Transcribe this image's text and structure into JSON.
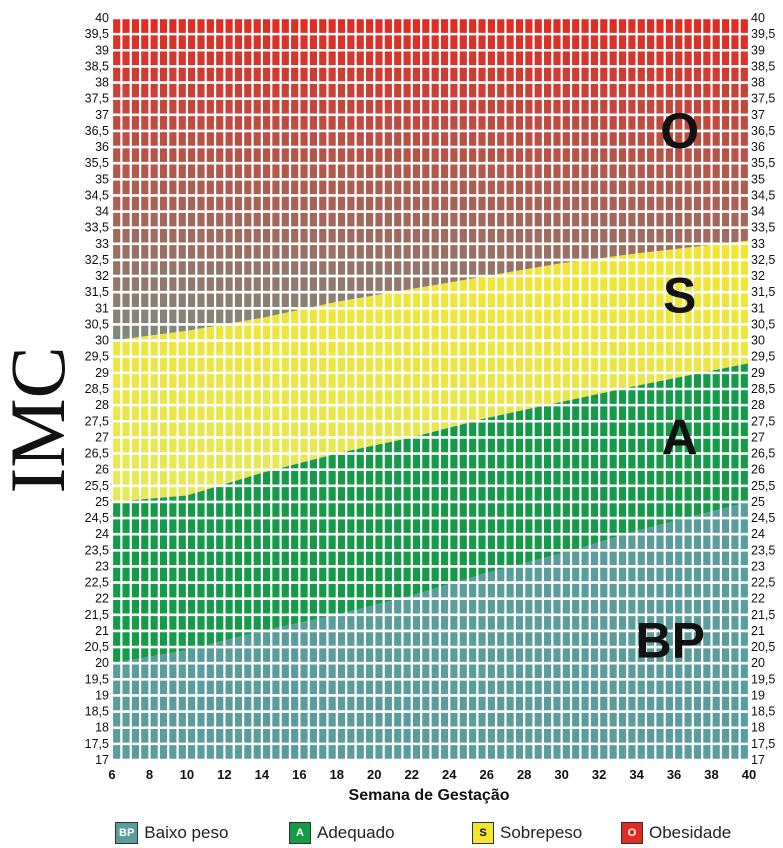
{
  "chart_data": {
    "type": "area",
    "ylabel": "IMC",
    "xlabel": "Semana de Gestação",
    "x": [
      6,
      10,
      14,
      18,
      22,
      26,
      30,
      34,
      40
    ],
    "xlim": [
      6,
      40
    ],
    "ylim": [
      17,
      40
    ],
    "xticks": [
      "6",
      "8",
      "10",
      "12",
      "14",
      "16",
      "18",
      "20",
      "22",
      "24",
      "26",
      "28",
      "30",
      "32",
      "34",
      "36",
      "38",
      "40"
    ],
    "yticks": [
      "17",
      "17,5",
      "18",
      "18,5",
      "19",
      "19,5",
      "20",
      "20,5",
      "21",
      "21,5",
      "22",
      "22,5",
      "23",
      "23,5",
      "24",
      "24,5",
      "25",
      "25,5",
      "26",
      "26,5",
      "27",
      "27,5",
      "28",
      "28,5",
      "29",
      "29,5",
      "30",
      "30,5",
      "31",
      "31,5",
      "32",
      "32,5",
      "33",
      "33,5",
      "34",
      "34,5",
      "35",
      "35,5",
      "36",
      "36,5",
      "37",
      "37,5",
      "38",
      "38,5",
      "39",
      "39,5",
      "40"
    ],
    "boundaries": [
      {
        "name": "BP/A",
        "values": [
          20.0,
          20.4,
          21.0,
          21.5,
          22.1,
          22.8,
          23.4,
          24.1,
          25.0
        ]
      },
      {
        "name": "A/S",
        "values": [
          25.0,
          25.2,
          25.9,
          26.5,
          27.0,
          27.6,
          28.1,
          28.6,
          29.3
        ]
      },
      {
        "name": "S/O",
        "values": [
          30.0,
          30.3,
          30.7,
          31.2,
          31.6,
          32.0,
          32.4,
          32.7,
          33.1
        ]
      }
    ],
    "zone_labels": [
      {
        "text": "O",
        "x": 36.3,
        "y": 36.5
      },
      {
        "text": "S",
        "x": 36.3,
        "y": 31.4
      },
      {
        "text": "A",
        "x": 36.3,
        "y": 27.0
      },
      {
        "text": "BP",
        "x": 35.8,
        "y": 20.7
      }
    ],
    "grid": true,
    "colors": {
      "obesidade_top": "#e02b22",
      "obesidade_bottom": "#7f8a7d",
      "sobrepeso": "#f2e531",
      "sobrepeso_bottom": "#e6e85a",
      "adequado": "#159a4a",
      "baixo_peso": "#5a9d9c"
    },
    "legend_position": "bottom"
  },
  "legend": {
    "items": [
      {
        "code": "BP",
        "label": "Baixo peso",
        "color": "#5a9d9c"
      },
      {
        "code": "A",
        "label": "Adequado",
        "color": "#159a4a"
      },
      {
        "code": "S",
        "label": "Sobrepeso",
        "color": "#f2e531"
      },
      {
        "code": "O",
        "label": "Obesidade",
        "color": "#e02b22"
      }
    ]
  }
}
